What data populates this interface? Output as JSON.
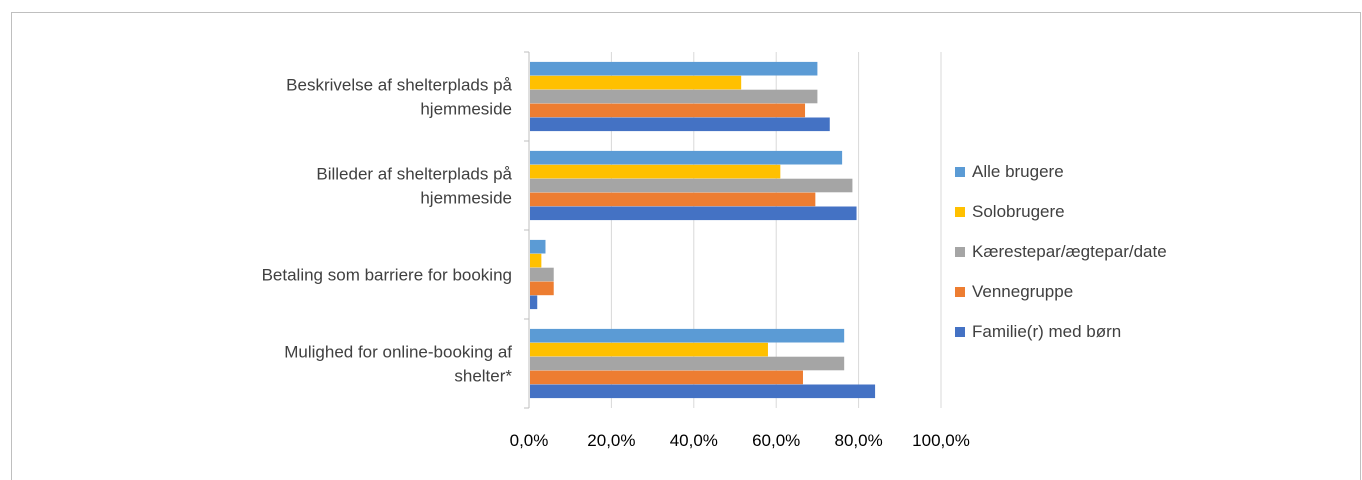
{
  "chart_data": {
    "type": "bar",
    "orientation": "horizontal",
    "categories": [
      [
        "Beskrivelse af shelterplads på",
        "hjemmeside"
      ],
      [
        "Billeder af shelterplads på",
        "hjemmeside"
      ],
      [
        "Betaling som barriere for booking"
      ],
      [
        "Mulighed for online-booking af",
        "shelter*"
      ]
    ],
    "series": [
      {
        "name": "Alle brugere",
        "color": "#5b9bd5",
        "values": [
          70.0,
          76.0,
          4.0,
          76.5
        ]
      },
      {
        "name": "Solobrugere",
        "color": "#ffc000",
        "values": [
          51.5,
          61.0,
          3.0,
          58.0
        ]
      },
      {
        "name": "Kærestepar/ægtepar/date",
        "color": "#a5a5a5",
        "values": [
          70.0,
          78.5,
          6.0,
          76.5
        ]
      },
      {
        "name": "Vennegruppe",
        "color": "#ed7d31",
        "values": [
          67.0,
          69.5,
          6.0,
          66.5
        ]
      },
      {
        "name": "Familie(r) med børn",
        "color": "#4472c4",
        "values": [
          73.0,
          79.5,
          2.0,
          84.0
        ]
      }
    ],
    "xlim": [
      0,
      100
    ],
    "xticks": [
      "0,0%",
      "20,0%",
      "40,0%",
      "60,0%",
      "80,0%",
      "100,0%"
    ],
    "grid": true,
    "legend": "right"
  }
}
